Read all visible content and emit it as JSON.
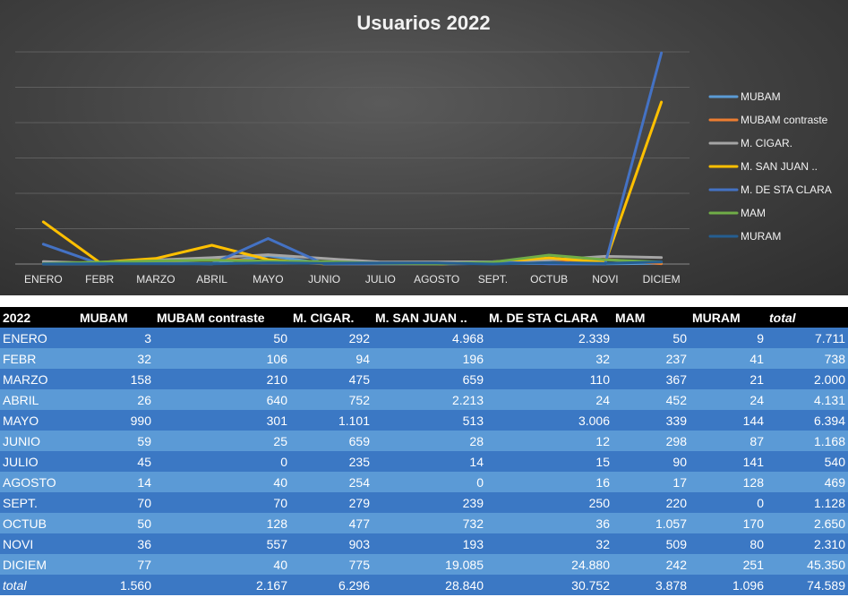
{
  "chart_data": {
    "type": "line",
    "title": "Usuarios 2022",
    "categories": [
      "ENERO",
      "FEBR",
      "MARZO",
      "ABRIL",
      "MAYO",
      "JUNIO",
      "JULIO",
      "AGOSTO",
      "SEPT.",
      "OCTUB",
      "NOVI",
      "DICIEM"
    ],
    "series": [
      {
        "name": "MUBAM",
        "color": "#5b9bd5",
        "values": [
          3,
          32,
          158,
          26,
          990,
          59,
          45,
          14,
          70,
          50,
          36,
          77
        ]
      },
      {
        "name": "MUBAM contraste",
        "color": "#ed7d31",
        "values": [
          50,
          106,
          210,
          640,
          301,
          25,
          0,
          40,
          70,
          128,
          557,
          40
        ]
      },
      {
        "name": "M. CIGAR.",
        "color": "#a5a5a5",
        "values": [
          292,
          94,
          475,
          752,
          1101,
          659,
          235,
          254,
          279,
          477,
          903,
          775
        ]
      },
      {
        "name": "M. SAN JUAN ..",
        "color": "#ffc000",
        "values": [
          4968,
          196,
          659,
          2213,
          513,
          28,
          14,
          0,
          239,
          732,
          193,
          19085
        ]
      },
      {
        "name": "M. DE STA CLARA",
        "color": "#4472c4",
        "values": [
          2339,
          32,
          110,
          24,
          3006,
          12,
          15,
          16,
          250,
          36,
          32,
          24880
        ]
      },
      {
        "name": "MAM",
        "color": "#70ad47",
        "values": [
          50,
          237,
          367,
          452,
          339,
          298,
          90,
          17,
          220,
          1057,
          509,
          242
        ]
      },
      {
        "name": "MURAM",
        "color": "#255e91",
        "values": [
          9,
          41,
          21,
          24,
          144,
          87,
          141,
          128,
          0,
          170,
          80,
          251
        ]
      }
    ],
    "ylim": [
      0,
      25000
    ],
    "grid": true,
    "legend": "right"
  },
  "table": {
    "headers": [
      "2022",
      "MUBAM",
      "MUBAM contraste",
      "M. CIGAR.",
      "M. SAN JUAN ..",
      "M. DE STA CLARA",
      "MAM",
      "MURAM",
      "total"
    ],
    "rows": [
      [
        "ENERO",
        "3",
        "50",
        "292",
        "4.968",
        "2.339",
        "50",
        "9",
        "7.711"
      ],
      [
        "FEBR",
        "32",
        "106",
        "94",
        "196",
        "32",
        "237",
        "41",
        "738"
      ],
      [
        "MARZO",
        "158",
        "210",
        "475",
        "659",
        "110",
        "367",
        "21",
        "2.000"
      ],
      [
        "ABRIL",
        "26",
        "640",
        "752",
        "2.213",
        "24",
        "452",
        "24",
        "4.131"
      ],
      [
        "MAYO",
        "990",
        "301",
        "1.101",
        "513",
        "3.006",
        "339",
        "144",
        "6.394"
      ],
      [
        "JUNIO",
        "59",
        "25",
        "659",
        "28",
        "12",
        "298",
        "87",
        "1.168"
      ],
      [
        "JULIO",
        "45",
        "0",
        "235",
        "14",
        "15",
        "90",
        "141",
        "540"
      ],
      [
        "AGOSTO",
        "14",
        "40",
        "254",
        "0",
        "16",
        "17",
        "128",
        "469"
      ],
      [
        "SEPT.",
        "70",
        "70",
        "279",
        "239",
        "250",
        "220",
        "0",
        "1.128"
      ],
      [
        "OCTUB",
        "50",
        "128",
        "477",
        "732",
        "36",
        "1.057",
        "170",
        "2.650"
      ],
      [
        "NOVI",
        "36",
        "557",
        "903",
        "193",
        "32",
        "509",
        "80",
        "2.310"
      ],
      [
        "DICIEM",
        "77",
        "40",
        "775",
        "19.085",
        "24.880",
        "242",
        "251",
        "45.350"
      ]
    ],
    "total_row": [
      "total",
      "1.560",
      "2.167",
      "6.296",
      "28.840",
      "30.752",
      "3.878",
      "1.096",
      "74.589"
    ]
  }
}
